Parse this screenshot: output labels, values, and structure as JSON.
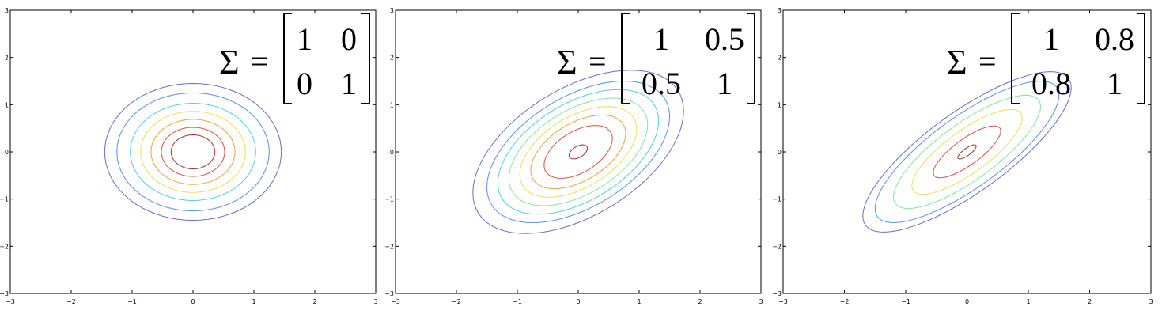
{
  "chart_data": [
    {
      "type": "contour",
      "distribution": "bivariate normal, mean (0,0)",
      "sigma_symbol": "Σ",
      "equals": "=",
      "matrix": [
        [
          "1",
          "0"
        ],
        [
          "0",
          "1"
        ]
      ],
      "covariance": [
        [
          1,
          0
        ],
        [
          0,
          1
        ]
      ],
      "contour_levels": 6,
      "xlim": [
        -3,
        3
      ],
      "ylim": [
        -3,
        3
      ],
      "xticks": [
        "−3",
        "−2",
        "−1",
        "0",
        "1",
        "2",
        "3"
      ],
      "yticks": [
        "3",
        "2",
        "1",
        "0",
        "−1",
        "−2",
        "−3"
      ],
      "grid": false
    },
    {
      "type": "contour",
      "distribution": "bivariate normal, mean (0,0)",
      "sigma_symbol": "Σ",
      "equals": "=",
      "matrix": [
        [
          "1",
          "0.5"
        ],
        [
          "0.5",
          "1"
        ]
      ],
      "covariance": [
        [
          1,
          0.5
        ],
        [
          0.5,
          1
        ]
      ],
      "contour_levels": 7,
      "xlim": [
        -3,
        3
      ],
      "ylim": [
        -3,
        3
      ],
      "xticks": [
        "−3",
        "−2",
        "−1",
        "0",
        "1",
        "2",
        "3"
      ],
      "yticks": [
        "3",
        "2",
        "1",
        "0",
        "−1",
        "−2",
        "−3"
      ],
      "grid": false
    },
    {
      "type": "contour",
      "distribution": "bivariate normal, mean (0,0)",
      "sigma_symbol": "Σ",
      "equals": "=",
      "matrix": [
        [
          "1",
          "0.8"
        ],
        [
          "0.8",
          "1"
        ]
      ],
      "covariance": [
        [
          1,
          0.8
        ],
        [
          0.8,
          1
        ]
      ],
      "contour_levels": 5,
      "xlim": [
        -3,
        3
      ],
      "ylim": [
        -3,
        3
      ],
      "xticks": [
        "−3",
        "−2",
        "−1",
        "0",
        "1",
        "2",
        "3"
      ],
      "yticks": [
        "3",
        "2",
        "1",
        "0",
        "−1",
        "−2",
        "−3"
      ],
      "grid": false
    }
  ],
  "contour_colors": [
    "#6b6bd0",
    "#5a8ff0",
    "#52d0e0",
    "#86e6a0",
    "#e6e060",
    "#f0a040",
    "#e05040",
    "#a03030"
  ]
}
